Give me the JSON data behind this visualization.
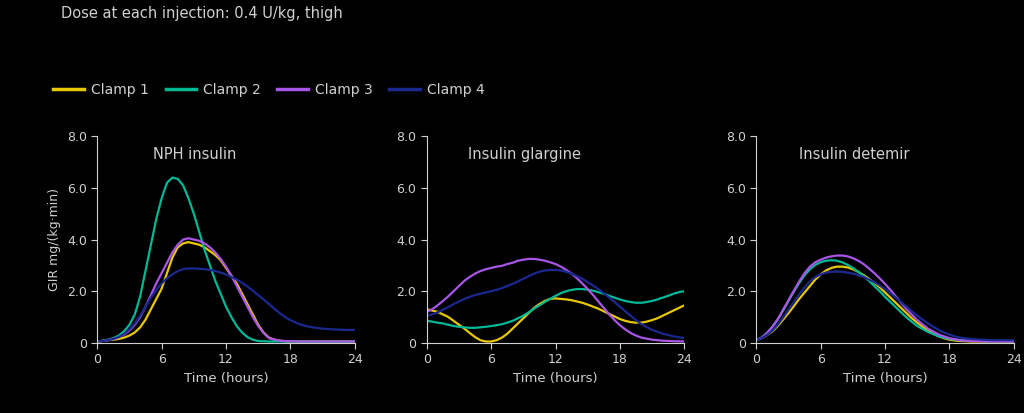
{
  "title_text": "Dose at each injection: 0.4 U/kg, thigh",
  "legend_labels": [
    "Clamp 1",
    "Clamp 2",
    "Clamp 3",
    "Clamp 4"
  ],
  "colors": [
    "#e8c800",
    "#00b896",
    "#a855e8",
    "#1a2890"
  ],
  "panel_titles": [
    "NPH insulin",
    "Insulin glargine",
    "Insulin detemir"
  ],
  "xlabel": "Time (hours)",
  "ylabel": "GIR mg/(kg·min)",
  "ylim": [
    0,
    8.0
  ],
  "yticks": [
    0,
    2.0,
    4.0,
    6.0,
    8.0
  ],
  "ytick_labels": [
    "0",
    "2.0",
    "4.0",
    "6.0",
    "8.0"
  ],
  "xticks": [
    0,
    6,
    12,
    18,
    24
  ],
  "background": "#000000",
  "text_color": "#d0d0d0",
  "linewidth": 1.6,
  "nph": {
    "clamp1": [
      [
        0,
        0.5,
        1,
        1.5,
        2,
        2.5,
        3,
        3.5,
        4,
        4.5,
        5,
        5.5,
        6,
        6.5,
        7,
        7.5,
        8,
        8.5,
        9,
        9.5,
        10,
        10.5,
        11,
        11.5,
        12,
        12.5,
        13,
        13.5,
        14,
        14.5,
        15,
        15.5,
        16,
        16.5,
        17,
        17.5,
        18,
        19,
        20,
        21,
        22,
        23,
        24
      ],
      [
        0.05,
        0.07,
        0.1,
        0.12,
        0.15,
        0.2,
        0.28,
        0.4,
        0.6,
        0.9,
        1.3,
        1.7,
        2.1,
        2.7,
        3.3,
        3.7,
        3.85,
        3.9,
        3.85,
        3.8,
        3.7,
        3.55,
        3.4,
        3.2,
        2.9,
        2.6,
        2.3,
        1.9,
        1.5,
        1.1,
        0.7,
        0.4,
        0.2,
        0.12,
        0.08,
        0.06,
        0.05,
        0.05,
        0.05,
        0.05,
        0.05,
        0.05,
        0.05
      ]
    ],
    "clamp2": [
      [
        0,
        0.5,
        1,
        1.5,
        2,
        2.5,
        3,
        3.5,
        4,
        4.5,
        5,
        5.5,
        6,
        6.5,
        7,
        7.5,
        8,
        8.5,
        9,
        9.5,
        10,
        10.5,
        11,
        11.5,
        12,
        12.5,
        13,
        13.5,
        14,
        14.5,
        15,
        16,
        17,
        18,
        19,
        20,
        21,
        22,
        23,
        24
      ],
      [
        0.05,
        0.08,
        0.12,
        0.18,
        0.28,
        0.45,
        0.7,
        1.1,
        1.8,
        2.8,
        3.8,
        4.8,
        5.6,
        6.2,
        6.4,
        6.35,
        6.1,
        5.6,
        5.0,
        4.3,
        3.6,
        3.0,
        2.4,
        1.9,
        1.4,
        1.0,
        0.65,
        0.4,
        0.22,
        0.12,
        0.07,
        0.05,
        0.05,
        0.05,
        0.05,
        0.05,
        0.05,
        0.05,
        0.05,
        0.05
      ]
    ],
    "clamp3": [
      [
        0,
        0.5,
        1,
        1.5,
        2,
        2.5,
        3,
        3.5,
        4,
        4.5,
        5,
        5.5,
        6,
        6.5,
        7,
        7.5,
        8,
        8.5,
        9,
        9.5,
        10,
        10.5,
        11,
        11.5,
        12,
        12.5,
        13,
        13.5,
        14,
        14.5,
        15,
        15.5,
        16,
        17,
        18,
        19,
        20,
        21,
        22,
        23,
        24
      ],
      [
        0.05,
        0.07,
        0.1,
        0.15,
        0.22,
        0.32,
        0.48,
        0.7,
        1.0,
        1.4,
        1.85,
        2.3,
        2.7,
        3.1,
        3.5,
        3.8,
        4.0,
        4.05,
        4.0,
        3.95,
        3.85,
        3.7,
        3.5,
        3.25,
        2.95,
        2.6,
        2.2,
        1.8,
        1.4,
        1.0,
        0.65,
        0.38,
        0.18,
        0.08,
        0.06,
        0.05,
        0.05,
        0.05,
        0.05,
        0.05,
        0.05
      ]
    ],
    "clamp4": [
      [
        0,
        0.5,
        1,
        1.5,
        2,
        2.5,
        3,
        3.5,
        4,
        4.5,
        5,
        5.5,
        6,
        6.5,
        7,
        7.5,
        8,
        8.5,
        9,
        9.5,
        10,
        10.5,
        11,
        11.5,
        12,
        12.5,
        13,
        13.5,
        14,
        14.5,
        15,
        15.5,
        16,
        16.5,
        17,
        17.5,
        18,
        18.5,
        19,
        20,
        21,
        22,
        23,
        24
      ],
      [
        0.05,
        0.07,
        0.1,
        0.15,
        0.22,
        0.35,
        0.52,
        0.75,
        1.05,
        1.4,
        1.75,
        2.05,
        2.3,
        2.5,
        2.65,
        2.78,
        2.85,
        2.88,
        2.88,
        2.87,
        2.85,
        2.82,
        2.78,
        2.72,
        2.65,
        2.55,
        2.45,
        2.32,
        2.18,
        2.02,
        1.85,
        1.68,
        1.5,
        1.32,
        1.15,
        1.0,
        0.88,
        0.78,
        0.7,
        0.6,
        0.55,
        0.52,
        0.5,
        0.5
      ]
    ]
  },
  "glargine": {
    "clamp1": [
      [
        0,
        0.5,
        1,
        1.5,
        2,
        2.5,
        3,
        3.5,
        4,
        4.5,
        5,
        5.5,
        6,
        6.5,
        7,
        7.5,
        8,
        8.5,
        9,
        9.5,
        10,
        10.5,
        11,
        11.5,
        12,
        12.5,
        13,
        13.5,
        14,
        14.5,
        15,
        15.5,
        16,
        16.5,
        17,
        17.5,
        18,
        18.5,
        19,
        19.5,
        20,
        20.5,
        21,
        21.5,
        22,
        22.5,
        23,
        23.5,
        24
      ],
      [
        1.3,
        1.25,
        1.2,
        1.1,
        1.0,
        0.85,
        0.7,
        0.55,
        0.38,
        0.22,
        0.1,
        0.05,
        0.05,
        0.1,
        0.2,
        0.35,
        0.55,
        0.75,
        0.95,
        1.15,
        1.35,
        1.5,
        1.62,
        1.7,
        1.72,
        1.7,
        1.68,
        1.65,
        1.6,
        1.55,
        1.48,
        1.4,
        1.32,
        1.22,
        1.12,
        1.02,
        0.92,
        0.85,
        0.8,
        0.78,
        0.78,
        0.82,
        0.88,
        0.95,
        1.05,
        1.15,
        1.25,
        1.35,
        1.45
      ]
    ],
    "clamp2": [
      [
        0,
        0.5,
        1,
        1.5,
        2,
        2.5,
        3,
        3.5,
        4,
        4.5,
        5,
        5.5,
        6,
        6.5,
        7,
        7.5,
        8,
        8.5,
        9,
        9.5,
        10,
        10.5,
        11,
        11.5,
        12,
        12.5,
        13,
        13.5,
        14,
        14.5,
        15,
        15.5,
        16,
        16.5,
        17,
        17.5,
        18,
        18.5,
        19,
        19.5,
        20,
        20.5,
        21,
        21.5,
        22,
        22.5,
        23,
        23.5,
        24
      ],
      [
        0.85,
        0.82,
        0.78,
        0.75,
        0.7,
        0.65,
        0.62,
        0.6,
        0.58,
        0.58,
        0.6,
        0.62,
        0.65,
        0.68,
        0.72,
        0.78,
        0.85,
        0.95,
        1.05,
        1.18,
        1.32,
        1.45,
        1.58,
        1.7,
        1.82,
        1.92,
        2.0,
        2.05,
        2.08,
        2.08,
        2.06,
        2.02,
        1.96,
        1.9,
        1.82,
        1.75,
        1.68,
        1.62,
        1.58,
        1.55,
        1.55,
        1.58,
        1.62,
        1.68,
        1.75,
        1.82,
        1.9,
        1.96,
        2.0
      ]
    ],
    "clamp3": [
      [
        0,
        0.5,
        1,
        1.5,
        2,
        2.5,
        3,
        3.5,
        4,
        4.5,
        5,
        5.5,
        6,
        6.5,
        7,
        7.5,
        8,
        8.5,
        9,
        9.5,
        10,
        10.5,
        11,
        11.5,
        12,
        12.5,
        13,
        13.5,
        14,
        14.5,
        15,
        15.5,
        16,
        16.5,
        17,
        17.5,
        18,
        18.5,
        19,
        19.5,
        20,
        21,
        22,
        23,
        24
      ],
      [
        1.2,
        1.3,
        1.45,
        1.62,
        1.8,
        2.0,
        2.2,
        2.4,
        2.55,
        2.68,
        2.78,
        2.85,
        2.9,
        2.95,
        2.98,
        3.05,
        3.1,
        3.18,
        3.22,
        3.25,
        3.25,
        3.22,
        3.18,
        3.12,
        3.05,
        2.95,
        2.82,
        2.68,
        2.5,
        2.3,
        2.08,
        1.85,
        1.6,
        1.35,
        1.1,
        0.88,
        0.68,
        0.52,
        0.38,
        0.28,
        0.2,
        0.12,
        0.08,
        0.06,
        0.05
      ]
    ],
    "clamp4": [
      [
        0,
        0.5,
        1,
        1.5,
        2,
        2.5,
        3,
        3.5,
        4,
        4.5,
        5,
        5.5,
        6,
        6.5,
        7,
        7.5,
        8,
        8.5,
        9,
        9.5,
        10,
        10.5,
        11,
        11.5,
        12,
        12.5,
        13,
        13.5,
        14,
        14.5,
        15,
        15.5,
        16,
        16.5,
        17,
        17.5,
        18,
        18.5,
        19,
        19.5,
        20,
        21,
        22,
        23,
        24
      ],
      [
        1.05,
        1.1,
        1.18,
        1.28,
        1.38,
        1.5,
        1.6,
        1.7,
        1.78,
        1.85,
        1.9,
        1.95,
        2.0,
        2.05,
        2.12,
        2.2,
        2.28,
        2.38,
        2.48,
        2.58,
        2.68,
        2.75,
        2.8,
        2.82,
        2.82,
        2.8,
        2.75,
        2.68,
        2.58,
        2.48,
        2.35,
        2.22,
        2.08,
        1.92,
        1.75,
        1.58,
        1.4,
        1.22,
        1.05,
        0.88,
        0.72,
        0.5,
        0.35,
        0.25,
        0.18
      ]
    ]
  },
  "detemir": {
    "clamp1": [
      [
        0,
        0.5,
        1,
        1.5,
        2,
        2.5,
        3,
        3.5,
        4,
        4.5,
        5,
        5.5,
        6,
        6.5,
        7,
        7.5,
        8,
        8.5,
        9,
        9.5,
        10,
        10.5,
        11,
        11.5,
        12,
        12.5,
        13,
        13.5,
        14,
        14.5,
        15,
        15.5,
        16,
        16.5,
        17,
        17.5,
        18,
        18.5,
        19,
        19.5,
        20,
        21,
        22,
        23,
        24
      ],
      [
        0.1,
        0.18,
        0.3,
        0.45,
        0.65,
        0.9,
        1.15,
        1.42,
        1.7,
        1.95,
        2.2,
        2.45,
        2.65,
        2.8,
        2.9,
        2.95,
        2.95,
        2.92,
        2.85,
        2.75,
        2.62,
        2.48,
        2.32,
        2.15,
        1.95,
        1.75,
        1.55,
        1.35,
        1.15,
        0.95,
        0.78,
        0.62,
        0.48,
        0.35,
        0.25,
        0.18,
        0.12,
        0.09,
        0.07,
        0.06,
        0.05,
        0.05,
        0.05,
        0.05,
        0.05
      ]
    ],
    "clamp2": [
      [
        0,
        0.5,
        1,
        1.5,
        2,
        2.5,
        3,
        3.5,
        4,
        4.5,
        5,
        5.5,
        6,
        6.5,
        7,
        7.5,
        8,
        8.5,
        9,
        9.5,
        10,
        10.5,
        11,
        11.5,
        12,
        12.5,
        13,
        13.5,
        14,
        15,
        16,
        17,
        18,
        19,
        20,
        21,
        22,
        23,
        24
      ],
      [
        0.1,
        0.2,
        0.38,
        0.62,
        0.9,
        1.25,
        1.62,
        1.98,
        2.32,
        2.62,
        2.85,
        3.02,
        3.12,
        3.18,
        3.2,
        3.18,
        3.12,
        3.02,
        2.9,
        2.75,
        2.58,
        2.4,
        2.2,
        2.0,
        1.78,
        1.58,
        1.38,
        1.18,
        0.98,
        0.65,
        0.42,
        0.25,
        0.15,
        0.1,
        0.08,
        0.07,
        0.06,
        0.06,
        0.06
      ]
    ],
    "clamp3": [
      [
        0,
        0.5,
        1,
        1.5,
        2,
        2.5,
        3,
        3.5,
        4,
        4.5,
        5,
        5.5,
        6,
        6.5,
        7,
        7.5,
        8,
        8.5,
        9,
        9.5,
        10,
        10.5,
        11,
        11.5,
        12,
        12.5,
        13,
        13.5,
        14,
        15,
        16,
        17,
        18,
        19,
        20,
        21,
        22,
        23,
        24
      ],
      [
        0.1,
        0.2,
        0.38,
        0.62,
        0.92,
        1.28,
        1.65,
        2.02,
        2.38,
        2.7,
        2.95,
        3.12,
        3.22,
        3.3,
        3.35,
        3.38,
        3.38,
        3.35,
        3.28,
        3.18,
        3.05,
        2.88,
        2.7,
        2.5,
        2.28,
        2.05,
        1.8,
        1.55,
        1.3,
        0.88,
        0.55,
        0.32,
        0.18,
        0.1,
        0.07,
        0.06,
        0.05,
        0.05,
        0.05
      ]
    ],
    "clamp4": [
      [
        0,
        0.5,
        1,
        1.5,
        2,
        2.5,
        3,
        3.5,
        4,
        4.5,
        5,
        5.5,
        6,
        6.5,
        7,
        7.5,
        8,
        8.5,
        9,
        9.5,
        10,
        10.5,
        11,
        11.5,
        12,
        12.5,
        13,
        13.5,
        14,
        14.5,
        15,
        15.5,
        16,
        16.5,
        17,
        17.5,
        18,
        18.5,
        19,
        20,
        21,
        22,
        23,
        24
      ],
      [
        0.1,
        0.18,
        0.3,
        0.48,
        0.7,
        0.98,
        1.28,
        1.58,
        1.88,
        2.15,
        2.38,
        2.55,
        2.65,
        2.72,
        2.75,
        2.76,
        2.75,
        2.72,
        2.68,
        2.62,
        2.55,
        2.45,
        2.35,
        2.22,
        2.08,
        1.92,
        1.75,
        1.58,
        1.4,
        1.22,
        1.05,
        0.9,
        0.75,
        0.62,
        0.5,
        0.4,
        0.32,
        0.25,
        0.2,
        0.15,
        0.12,
        0.1,
        0.1,
        0.1
      ]
    ]
  }
}
